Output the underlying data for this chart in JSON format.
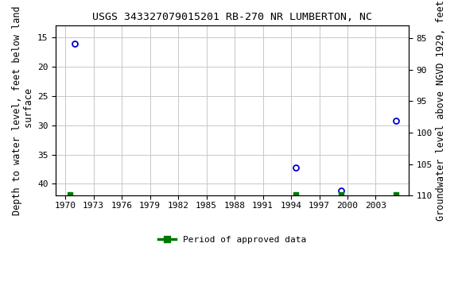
{
  "title": "USGS 343327079015201 RB-270 NR LUMBERTON, NC",
  "ylabel_left": "Depth to water level, feet below land\n surface",
  "ylabel_right": "Groundwater level above NGVD 1929, feet",
  "ylim_left": [
    13,
    42
  ],
  "ylim_right": [
    110,
    83
  ],
  "xlim": [
    1969.0,
    2006.5
  ],
  "xticks": [
    1970,
    1973,
    1976,
    1979,
    1982,
    1985,
    1988,
    1991,
    1994,
    1997,
    2000,
    2003
  ],
  "yticks_left": [
    15,
    20,
    25,
    30,
    35,
    40
  ],
  "yticks_right": [
    110,
    105,
    100,
    95,
    90,
    85
  ],
  "data_points": [
    {
      "year": 1971.0,
      "depth": 16.1
    },
    {
      "year": 1994.5,
      "depth": 37.2
    },
    {
      "year": 1999.3,
      "depth": 41.1
    },
    {
      "year": 2005.2,
      "depth": 29.3
    }
  ],
  "green_markers": [
    {
      "year": 1970.5
    },
    {
      "year": 1994.5
    },
    {
      "year": 1999.3
    },
    {
      "year": 2005.2
    }
  ],
  "green_y": 41.8,
  "point_color": "#0000cc",
  "green_color": "#007700",
  "bg_color": "#ffffff",
  "grid_color": "#c8c8c8",
  "title_fontsize": 9.5,
  "axis_label_fontsize": 8.5,
  "tick_fontsize": 8,
  "legend_label": "Period of approved data",
  "font_family": "monospace"
}
